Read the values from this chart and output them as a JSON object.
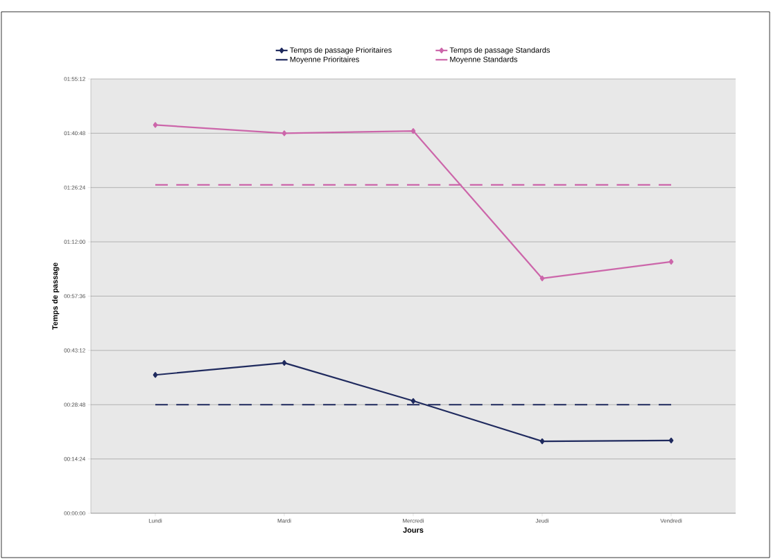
{
  "chart_data": {
    "type": "line",
    "xlabel": "Jours",
    "ylabel": "Temps de passage",
    "categories": [
      "Lundi",
      "Mardi",
      "Mercredi",
      "Jeudi",
      "Vendredi"
    ],
    "series": [
      {
        "name": "Temps de passage Prioritaires",
        "color": "#1f2a5e",
        "marker": "diamond",
        "line_style": "solid",
        "values": [
          36.7,
          39.9,
          29.8,
          19.1,
          19.3
        ]
      },
      {
        "name": "Temps de passage Standards",
        "color": "#cc66aa",
        "marker": "diamond",
        "line_style": "solid",
        "values": [
          103.0,
          100.8,
          101.4,
          62.3,
          66.7
        ]
      },
      {
        "name": "Moyenne Prioritaires",
        "color": "#1f2a5e",
        "marker": "none",
        "line_style": "dashed",
        "values": [
          28.8,
          28.8,
          28.8,
          28.8,
          28.8
        ]
      },
      {
        "name": "Moyenne Standards",
        "color": "#cc66aa",
        "marker": "none",
        "line_style": "dashed",
        "values": [
          87.1,
          87.1,
          87.1,
          87.1,
          87.1
        ]
      }
    ],
    "ylim": [
      0,
      115.2
    ],
    "yticks": [
      {
        "value": 0,
        "label": "00:00:00"
      },
      {
        "value": 14.4,
        "label": "00:14:24"
      },
      {
        "value": 28.8,
        "label": "00:28:48"
      },
      {
        "value": 43.2,
        "label": "00:43:12"
      },
      {
        "value": 57.6,
        "label": "00:57:36"
      },
      {
        "value": 72,
        "label": "01:12:00"
      },
      {
        "value": 86.4,
        "label": "01:26:24"
      },
      {
        "value": 100.8,
        "label": "01:40:48"
      },
      {
        "value": 115.2,
        "label": "01:55:12"
      }
    ],
    "grid": "y",
    "legend": "top"
  }
}
